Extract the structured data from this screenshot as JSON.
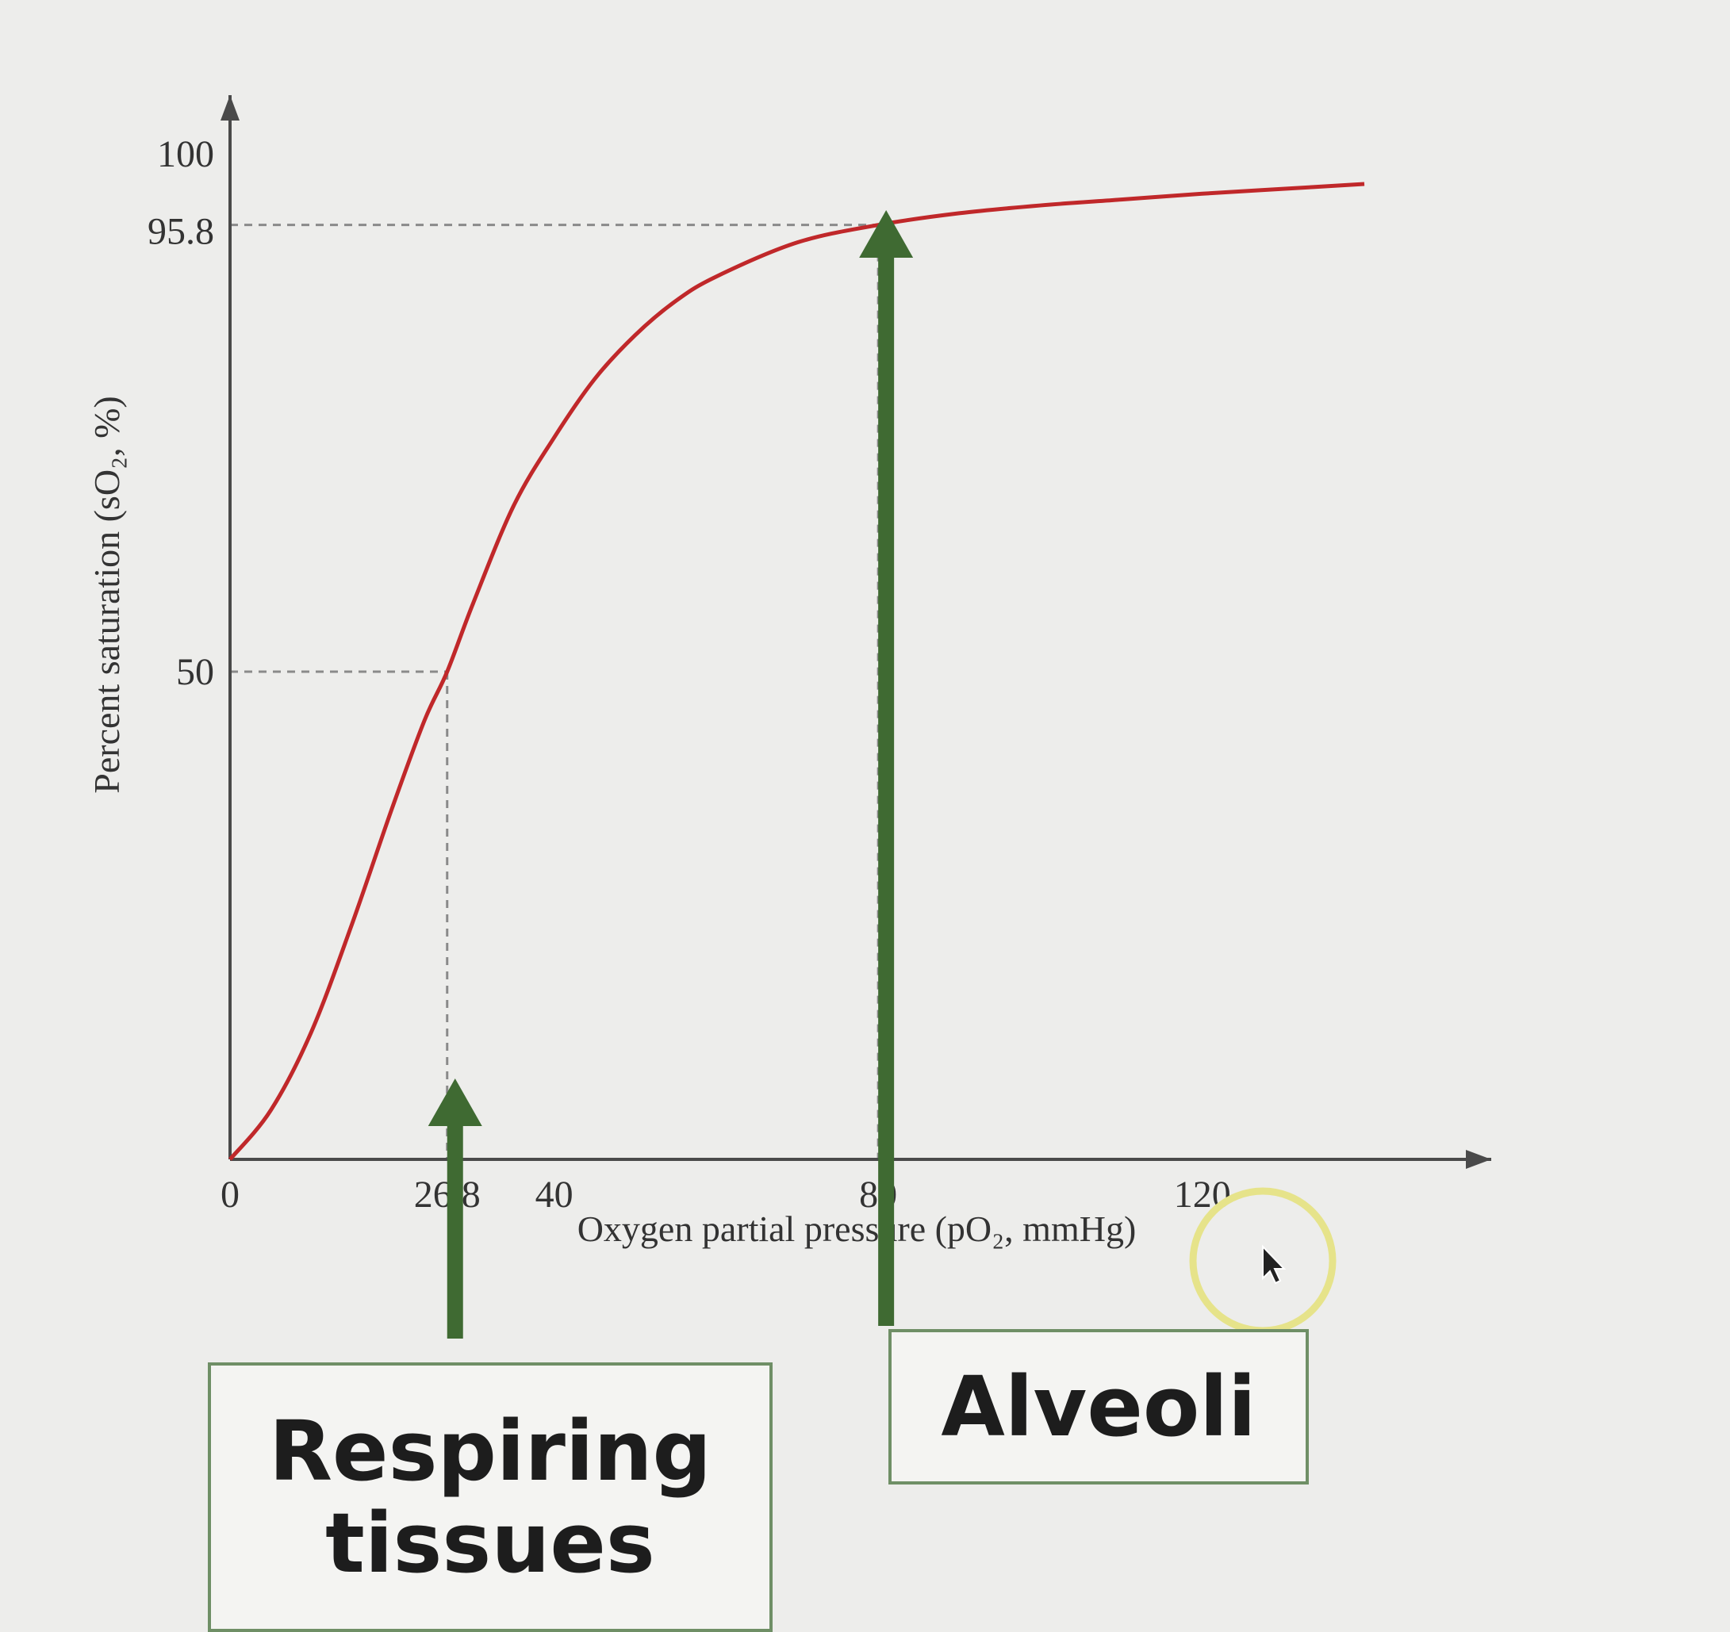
{
  "chart_data": {
    "type": "line",
    "title": "",
    "xlabel": "Oxygen partial pressure (pO₂, mmHg)",
    "ylabel": "Percent saturation (sO₂, %)",
    "xlim": [
      0,
      140
    ],
    "ylim": [
      0,
      100
    ],
    "x_ticks": [
      {
        "value": 0,
        "label": "0"
      },
      {
        "value": 26.8,
        "label": "26.8"
      },
      {
        "value": 40,
        "label": "40"
      },
      {
        "value": 80,
        "label": "80"
      },
      {
        "value": 120,
        "label": "120"
      }
    ],
    "y_ticks": [
      {
        "value": 50,
        "label": "50"
      },
      {
        "value": 95.8,
        "label": "95.8"
      },
      {
        "value": 100,
        "label": "100"
      }
    ],
    "series": [
      {
        "color": "#c0282a",
        "x": [
          0,
          5,
          10,
          15,
          20,
          24,
          26.8,
          30,
          35,
          40,
          45,
          50,
          55,
          60,
          70,
          80,
          90,
          100,
          110,
          120,
          130,
          140
        ],
        "y": [
          0,
          5,
          13,
          24,
          36,
          45,
          50,
          57,
          67,
          74,
          80,
          84.5,
          88,
          90.5,
          94,
          95.8,
          97,
          97.8,
          98.4,
          99,
          99.5,
          100
        ]
      }
    ],
    "reference_lines": [
      {
        "x": 26.8,
        "y": 50
      },
      {
        "x": 80,
        "y": 95.8
      }
    ],
    "annotations": [
      {
        "label_lines": [
          "Respiring",
          "tissues"
        ],
        "x": 26.8,
        "color": "#3f6a32"
      },
      {
        "label_lines": [
          "Alveoli"
        ],
        "x": 80,
        "color": "#3f6a32"
      }
    ],
    "grid": false,
    "legend": "none"
  }
}
